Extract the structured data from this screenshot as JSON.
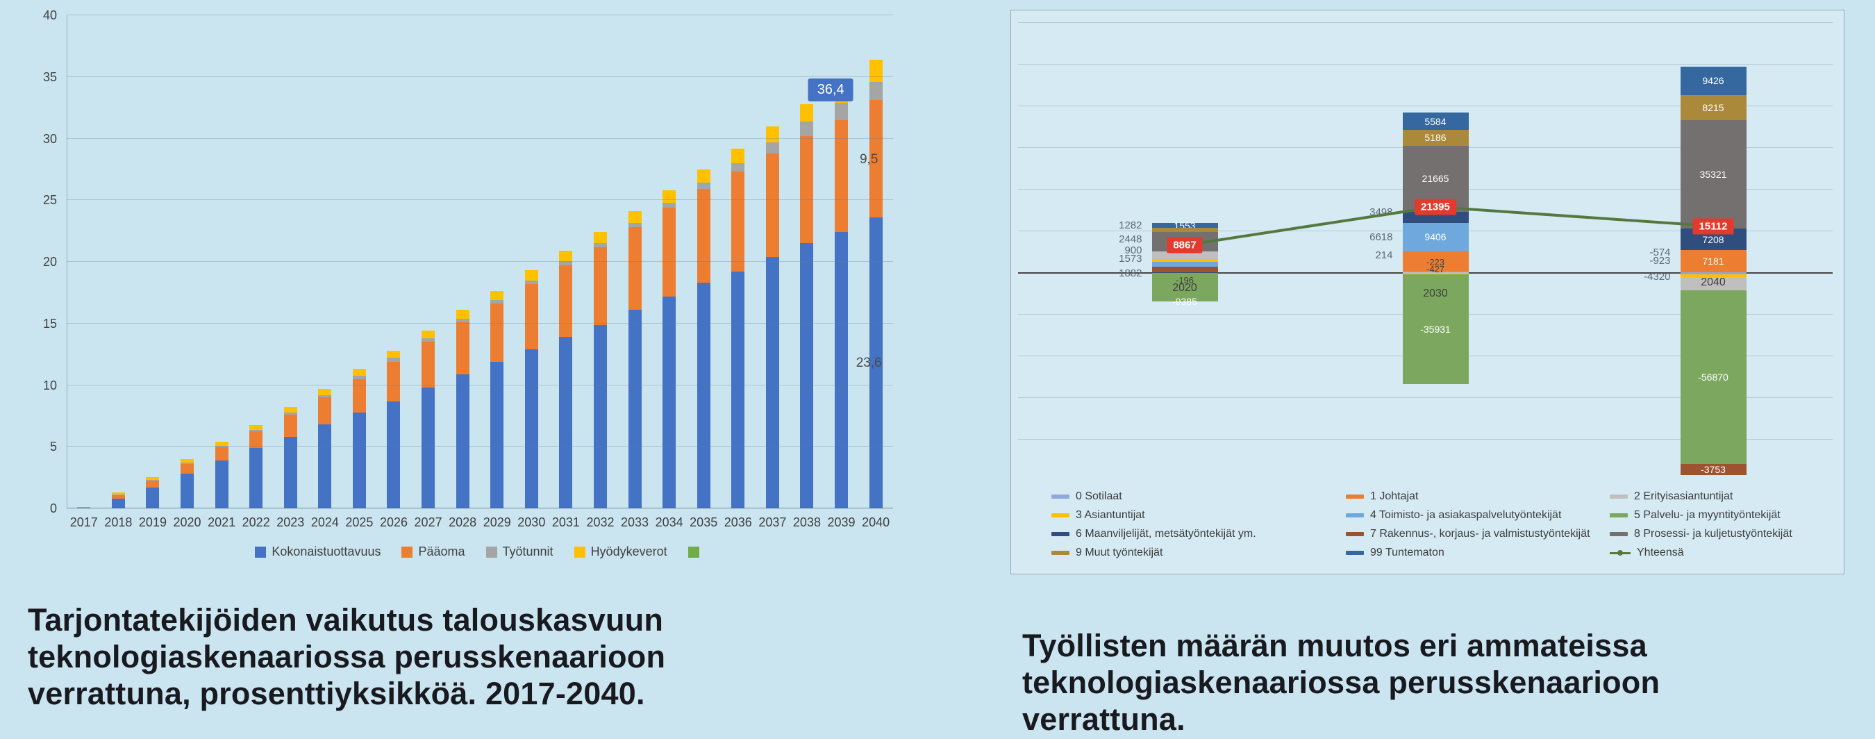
{
  "theme": {
    "page_background": "#CAE5EF",
    "panel_background": "#D5EAF3",
    "panel_border": "#93A9B3",
    "highlight_red": "#E23B2E"
  },
  "captions": {
    "left": "Tarjontatekijöiden vaikutus talouskasvuun\nteknologiaskenaariossa perusskenaarioon\nverrattuna, prosenttiyksikköä. 2017-2040.",
    "right": "Työllisten määrän muutos eri ammateissa\nteknologiaskenaariossa perusskenaarioon\nverrattuna."
  },
  "chart_data": [
    {
      "type": "bar",
      "stacked": true,
      "title": "",
      "xlabel": "",
      "ylabel": "",
      "ylim": [
        0,
        40
      ],
      "yticks": [
        0,
        5,
        10,
        15,
        20,
        25,
        30,
        35,
        40
      ],
      "grid": true,
      "legend_position": "bottom",
      "categories": [
        "2017",
        "2018",
        "2019",
        "2020",
        "2021",
        "2022",
        "2023",
        "2024",
        "2025",
        "2026",
        "2027",
        "2028",
        "2029",
        "2030",
        "2031",
        "2032",
        "2033",
        "2034",
        "2035",
        "2036",
        "2037",
        "2038",
        "2039",
        "2040"
      ],
      "series": [
        {
          "name": "Kokonaistuottavuus",
          "color": "#4472C4",
          "values": [
            0.05,
            0.8,
            1.7,
            2.8,
            3.9,
            4.9,
            5.8,
            6.8,
            7.8,
            8.7,
            9.8,
            10.9,
            11.9,
            12.9,
            13.9,
            14.9,
            16.1,
            17.2,
            18.3,
            19.2,
            20.4,
            21.5,
            22.4,
            23.6
          ]
        },
        {
          "name": "Pääoma",
          "color": "#ED7D31",
          "values": [
            0.03,
            0.3,
            0.55,
            0.8,
            1.05,
            1.35,
            1.8,
            2.2,
            2.7,
            3.2,
            3.7,
            4.2,
            4.7,
            5.3,
            5.8,
            6.3,
            6.7,
            7.2,
            7.6,
            8.1,
            8.4,
            8.7,
            9.1,
            9.5
          ]
        },
        {
          "name": "Työtunnit",
          "color": "#A5A5A5",
          "values": [
            0.01,
            0.05,
            0.07,
            0.1,
            0.1,
            0.12,
            0.15,
            0.2,
            0.25,
            0.3,
            0.3,
            0.3,
            0.3,
            0.3,
            0.35,
            0.35,
            0.35,
            0.4,
            0.5,
            0.7,
            0.9,
            1.2,
            1.4,
            1.5
          ]
        },
        {
          "name": "Hyödykeverot",
          "color": "#FFC000",
          "values": [
            0.02,
            0.15,
            0.2,
            0.3,
            0.35,
            0.4,
            0.45,
            0.5,
            0.55,
            0.6,
            0.65,
            0.7,
            0.75,
            0.8,
            0.85,
            0.9,
            0.95,
            1.0,
            1.1,
            1.2,
            1.3,
            1.4,
            1.6,
            1.8
          ]
        }
      ],
      "legend_extra": {
        "name": "",
        "color": "#70AD47"
      },
      "annotations": [
        {
          "text": "36,4",
          "bar": "2040",
          "at": 33.0,
          "dx": -65,
          "style": "callout"
        },
        {
          "text": "9,5",
          "bar": "2040",
          "at": 28.3,
          "dx": -10,
          "style": "plain"
        },
        {
          "text": "23,6",
          "bar": "2040",
          "at": 11.8,
          "dx": -10,
          "style": "plain"
        }
      ]
    },
    {
      "type": "stacked-bar-line",
      "title": "",
      "grid": true,
      "legend_position": "bottom",
      "categories": [
        "2020",
        "2030",
        "2040"
      ],
      "series_colors": {
        "0 Sotilaat": "#8EA9DB",
        "1 Johtajat": "#ED7D31",
        "2 Erityisasiantuntijat": "#BFBFBF",
        "3 Asiantuntijat": "#FFC000",
        "4 Toimisto- ja asiakaspalvelutyöntekijät": "#6FA8DC",
        "5 Palvelu- ja myyntityöntekijät": "#7CA75F",
        "6 Maanviljelijät, metsätyöntekijät ym.": "#2F4E7E",
        "7 Rakennus-, korjaus- ja valmistustyöntekijät": "#9E5330",
        "8 Prosessi- ja kuljetustyöntekijät": "#757070",
        "9 Muut työntekijät": "#AA8A3A",
        "99 Tuntematon": "#35689E",
        "Yhteensä": "#54793E"
      },
      "bars": [
        {
          "category": "2020",
          "category_label_dy": 22,
          "segments": [
            {
              "series": "99 Tuntematon",
              "value": 1553,
              "show_label": true
            },
            {
              "series": "9 Muut työntekijät",
              "value": 1282
            },
            {
              "series": "8 Prosessi- ja kuljetustyöntekijät",
              "value": 6477,
              "show_label": true
            },
            {
              "series": "2 Erityisasiantuntijat",
              "value": 2448
            },
            {
              "series": "3 Asiantuntijat",
              "value": 900
            },
            {
              "series": "4 Toimisto- ja asiakaspalvelutyöntekijät",
              "value": 1573
            },
            {
              "series": "7 Rakennus-, korjaus- ja valmistustyöntekijät",
              "value": 1882
            },
            {
              "series": "6 Maanviljelijät, metsätyöntekijät ym.",
              "value": -196
            },
            {
              "series": "5 Palvelu- ja myyntityöntekijät",
              "value": -9385,
              "show_label": true,
              "label_dy": 34
            }
          ],
          "left_labels": [
            {
              "text": "1282",
              "dy": -67
            },
            {
              "text": "2448",
              "dy": -47
            },
            {
              "text": "900",
              "dy": -31
            },
            {
              "text": "1573",
              "dy": -19
            },
            {
              "text": "1882",
              "dy": 2
            }
          ],
          "bar_labels": [
            {
              "text": "-196",
              "dy": 12
            }
          ]
        },
        {
          "category": "2030",
          "category_label_dy": 30,
          "segments": [
            {
              "series": "99 Tuntematon",
              "value": 5584,
              "show_label": true
            },
            {
              "series": "9 Muut työntekijät",
              "value": 5186,
              "show_label": true
            },
            {
              "series": "8 Prosessi- ja kuljetustyöntekijät",
              "value": 21665,
              "show_label": true
            },
            {
              "series": "6 Maanviljelijät, metsätyöntekijät ym.",
              "value": 3498
            },
            {
              "series": "4 Toimisto- ja asiakaspalvelutyöntekijät",
              "value": 9406,
              "show_label": true
            },
            {
              "series": "1 Johtajat",
              "value": 6618
            },
            {
              "series": "0 Sotilaat",
              "value": 214
            },
            {
              "series": "2 Erityisasiantuntijat",
              "value": -223
            },
            {
              "series": "3 Asiantuntijat",
              "value": -427
            },
            {
              "series": "5 Palvelu- ja myyntityöntekijät",
              "value": -35931,
              "show_label": true
            }
          ],
          "left_labels": [
            {
              "text": "3498",
              "dy": -86
            },
            {
              "text": "6618",
              "dy": -50
            },
            {
              "text": "214",
              "dy": -24
            }
          ],
          "bar_labels": [
            {
              "text": "-223",
              "dy": -14
            },
            {
              "text": "-427",
              "dy": -4
            }
          ]
        },
        {
          "category": "2040",
          "category_label_dy": 14,
          "segments": [
            {
              "series": "99 Tuntematon",
              "value": 9426,
              "show_label": true
            },
            {
              "series": "9 Muut työntekijät",
              "value": 8215,
              "show_label": true
            },
            {
              "series": "8 Prosessi- ja kuljetustyöntekijät",
              "value": 35321,
              "show_label": true
            },
            {
              "series": "6 Maanviljelijät, metsätyöntekijät ym.",
              "value": 7208,
              "show_label": true
            },
            {
              "series": "1 Johtajat",
              "value": 7181,
              "show_label": true
            },
            {
              "series": "0 Sotilaat",
              "value": -574
            },
            {
              "series": "3 Asiantuntijat",
              "value": -923
            },
            {
              "series": "2 Erityisasiantuntijat",
              "value": -4320
            },
            {
              "series": "5 Palvelu- ja myyntityöntekijät",
              "value": -56870,
              "show_label": true
            },
            {
              "series": "7 Rakennus-, korjaus- ja valmistustyöntekijät",
              "value": -3753,
              "show_label": true
            }
          ],
          "left_labels": [
            {
              "text": "-574",
              "dy": -28
            },
            {
              "text": "-923",
              "dy": -16
            },
            {
              "text": "-4320",
              "dy": 7
            }
          ],
          "bar_labels": []
        }
      ],
      "line": {
        "name": "Yhteensä",
        "color": "#54793E",
        "values": [
          8867,
          21395,
          15112
        ]
      },
      "legend": [
        "0 Sotilaat",
        "1 Johtajat",
        "2 Erityisasiantuntijat",
        "3 Asiantuntijat",
        "4 Toimisto- ja asiakaspalvelutyöntekijät",
        "5 Palvelu- ja myyntityöntekijät",
        "6 Maanviljelijät, metsätyöntekijät ym.",
        "7 Rakennus-, korjaus- ja valmistustyöntekijät",
        "8 Prosessi- ja kuljetustyöntekijät",
        "9 Muut työntekijät",
        "99 Tuntematon",
        "Yhteensä"
      ]
    }
  ]
}
